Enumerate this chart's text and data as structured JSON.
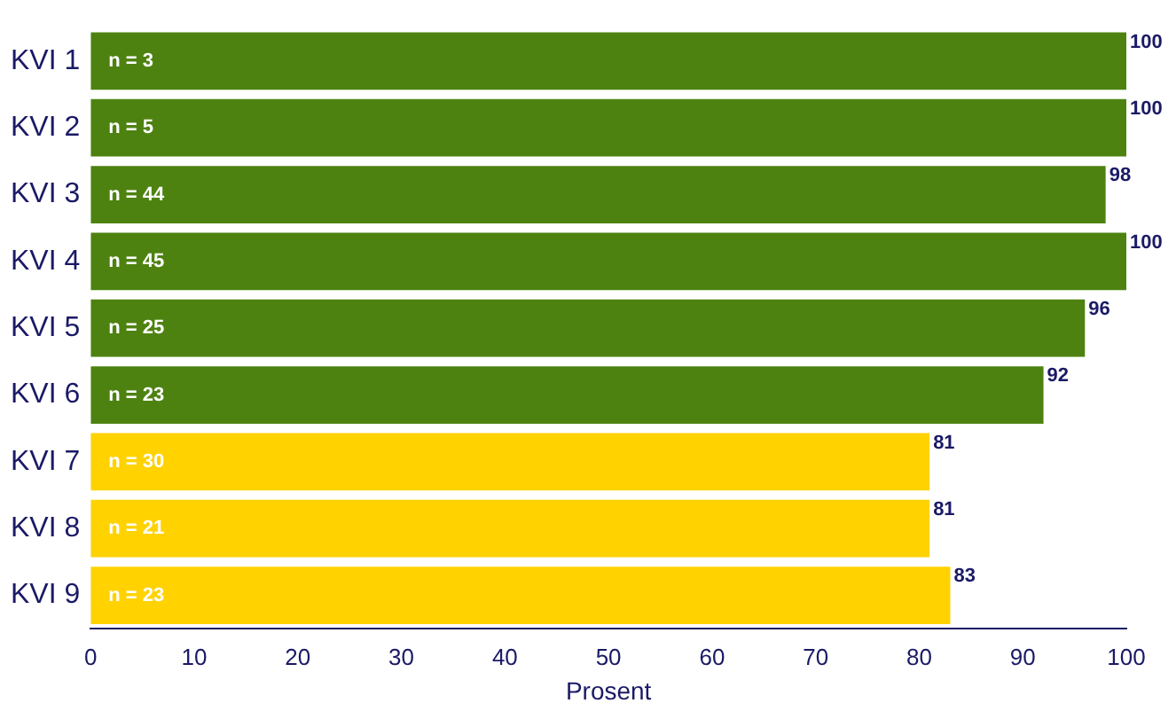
{
  "chart_data": {
    "type": "bar",
    "orientation": "horizontal",
    "categories": [
      "KVI 1",
      "KVI 2",
      "KVI 3",
      "KVI 4",
      "KVI 5",
      "KVI 6",
      "KVI 7",
      "KVI 8",
      "KVI 9"
    ],
    "values": [
      100,
      100,
      98,
      100,
      96,
      92,
      81,
      81,
      83
    ],
    "colors": [
      "#4e8210",
      "#4e8210",
      "#4e8210",
      "#4e8210",
      "#4e8210",
      "#4e8210",
      "#ffd200",
      "#ffd200",
      "#ffd200"
    ],
    "xlim": [
      0,
      100
    ],
    "xticks": [
      0,
      10,
      20,
      30,
      40,
      50,
      60,
      70,
      80,
      90,
      100
    ],
    "xlabel": "Prosent",
    "grid": false,
    "legend": false,
    "data_labels": true,
    "annotations": [
      {
        "text": "n = 3",
        "y": "KVI 1"
      },
      {
        "text": "n = 5",
        "y": "KVI 2"
      },
      {
        "text": "n = 44",
        "y": "KVI 3"
      },
      {
        "text": "n = 45",
        "y": "KVI 4"
      },
      {
        "text": "n = 25",
        "y": "KVI 5"
      },
      {
        "text": "n = 23",
        "y": "KVI 6"
      },
      {
        "text": "n = 30",
        "y": "KVI 7"
      },
      {
        "text": "n = 21",
        "y": "KVI 8"
      },
      {
        "text": "n = 23",
        "y": "KVI 9"
      }
    ]
  }
}
